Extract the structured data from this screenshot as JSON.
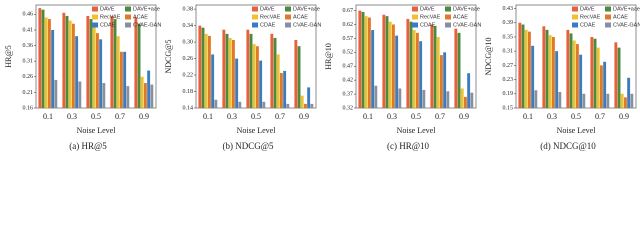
{
  "chart_data": [
    {
      "type": "bar",
      "ylabel": "HR@5",
      "xlabel": "Noise Level",
      "caption": "(a) HR@5",
      "categories": [
        "0.1",
        "0.3",
        "0.5",
        "0.7",
        "0.9"
      ],
      "ylim": [
        0.16,
        0.49
      ],
      "yticks": [
        0.16,
        0.21,
        0.26,
        0.31,
        0.36,
        0.41,
        0.46
      ],
      "legend": "upper right",
      "series": [
        {
          "name": "DAVE",
          "color": "#e8603c",
          "values": [
            0.48,
            0.465,
            0.455,
            0.455,
            0.45
          ]
        },
        {
          "name": "DAVE+aae",
          "color": "#4e8a3c",
          "values": [
            0.475,
            0.455,
            0.445,
            0.445,
            0.43
          ]
        },
        {
          "name": "RecVAE",
          "color": "#f0c030",
          "values": [
            0.45,
            0.44,
            0.425,
            0.39,
            0.26
          ]
        },
        {
          "name": "ACAE",
          "color": "#e07a28",
          "values": [
            0.445,
            0.43,
            0.4,
            0.34,
            0.24
          ]
        },
        {
          "name": "CDAE",
          "color": "#3a7cc0",
          "values": [
            0.41,
            0.39,
            0.38,
            0.34,
            0.28
          ]
        },
        {
          "name": "CVAE-GAN",
          "color": "#8a8fa0",
          "values": [
            0.25,
            0.245,
            0.24,
            0.23,
            0.235
          ]
        }
      ]
    },
    {
      "type": "bar",
      "ylabel": "NDCG@5",
      "xlabel": "Noise Level",
      "caption": "(b) NDCG@5",
      "categories": [
        "0.1",
        "0.3",
        "0.5",
        "0.7",
        "0.9"
      ],
      "ylim": [
        0.14,
        0.39
      ],
      "yticks": [
        0.14,
        0.18,
        0.22,
        0.26,
        {
          "value": 0.3,
          "label": "0.30"
        },
        0.34,
        0.38
      ],
      "legend": "upper right",
      "series": [
        {
          "name": "DAVE",
          "color": "#e8603c",
          "values": [
            0.34,
            0.33,
            0.33,
            0.32,
            0.305
          ]
        },
        {
          "name": "DAVE+aae",
          "color": "#4e8a3c",
          "values": [
            0.335,
            0.32,
            0.32,
            0.31,
            0.29
          ]
        },
        {
          "name": "RecVAE",
          "color": "#f0c030",
          "values": [
            0.32,
            0.31,
            0.295,
            0.27,
            0.17
          ]
        },
        {
          "name": "ACAE",
          "color": "#e07a28",
          "values": [
            0.315,
            0.305,
            0.29,
            0.225,
            0.15
          ]
        },
        {
          "name": "CDAE",
          "color": "#3a7cc0",
          "values": [
            0.27,
            0.26,
            0.255,
            0.23,
            0.19
          ]
        },
        {
          "name": "CVAE-GAN",
          "color": "#8a8fa0",
          "values": [
            0.16,
            0.155,
            0.155,
            0.15,
            0.15
          ]
        }
      ]
    },
    {
      "type": "bar",
      "ylabel": "HR@10",
      "xlabel": "Noise Level",
      "caption": "(c) HR@10",
      "categories": [
        "0.1",
        "0.3",
        "0.5",
        "0.7",
        "0.9"
      ],
      "ylim": [
        0.32,
        0.69
      ],
      "yticks": [
        0.32,
        0.37,
        0.42,
        0.47,
        0.52,
        0.57,
        0.62,
        0.67
      ],
      "legend": "upper right",
      "series": [
        {
          "name": "DAVE",
          "color": "#e8603c",
          "values": [
            0.67,
            0.655,
            0.64,
            0.62,
            0.605
          ]
        },
        {
          "name": "DAVE+aae",
          "color": "#4e8a3c",
          "values": [
            0.665,
            0.65,
            0.63,
            0.615,
            0.59
          ]
        },
        {
          "name": "RecVAE",
          "color": "#f0c030",
          "values": [
            0.65,
            0.63,
            0.6,
            0.575,
            0.39
          ]
        },
        {
          "name": "ACAE",
          "color": "#e07a28",
          "values": [
            0.645,
            0.62,
            0.59,
            0.51,
            0.36
          ]
        },
        {
          "name": "CDAE",
          "color": "#3a7cc0",
          "values": [
            0.6,
            0.58,
            0.56,
            0.52,
            0.445
          ]
        },
        {
          "name": "CVAE-GAN",
          "color": "#8a8fa0",
          "values": [
            0.4,
            0.39,
            0.385,
            0.38,
            0.375
          ]
        }
      ]
    },
    {
      "type": "bar",
      "ylabel": "NDCG@10",
      "xlabel": "Noise Level",
      "caption": "(d) NDCG@10",
      "categories": [
        "0.1",
        "0.3",
        "0.5",
        "0.7",
        "0.9"
      ],
      "ylim": [
        0.15,
        0.44
      ],
      "yticks": [
        0.15,
        0.19,
        0.23,
        0.27,
        0.31,
        0.35,
        0.39,
        0.43
      ],
      "legend": "upper right",
      "series": [
        {
          "name": "DAVE",
          "color": "#e8603c",
          "values": [
            0.39,
            0.38,
            0.37,
            0.35,
            0.335
          ]
        },
        {
          "name": "DAVE+aae",
          "color": "#4e8a3c",
          "values": [
            0.385,
            0.37,
            0.36,
            0.345,
            0.32
          ]
        },
        {
          "name": "RecVAE",
          "color": "#f0c030",
          "values": [
            0.37,
            0.355,
            0.34,
            0.32,
            0.19
          ]
        },
        {
          "name": "ACAE",
          "color": "#e07a28",
          "values": [
            0.365,
            0.35,
            0.33,
            0.27,
            0.18
          ]
        },
        {
          "name": "CDAE",
          "color": "#3a7cc0",
          "values": [
            0.325,
            0.31,
            0.3,
            0.28,
            0.235
          ]
        },
        {
          "name": "CVAE-GAN",
          "color": "#8a8fa0",
          "values": [
            0.2,
            0.195,
            0.19,
            0.19,
            0.19
          ]
        }
      ]
    }
  ]
}
